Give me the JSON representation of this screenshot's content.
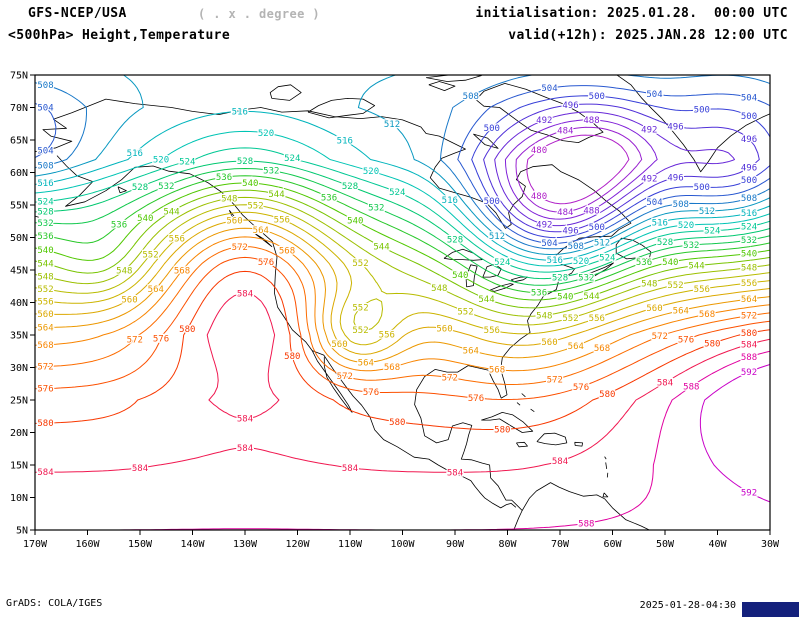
{
  "header": {
    "model": "GFS-NCEP/USA",
    "resolution_note": "( . x . degree )",
    "product": "<500hPa> Height,Temperature",
    "init_line": "initialisation: 2025.01.28.  00:00 UTC",
    "valid_line": "valid(+12h): 2025.JAN.28 12:00 UTC"
  },
  "footer": {
    "credit": "GrADS: COLA/IGES",
    "generated": "2025-01-28-04:30"
  },
  "map": {
    "lat_ticks": [
      "75N",
      "70N",
      "65N",
      "60N",
      "55N",
      "50N",
      "45N",
      "40N",
      "35N",
      "30N",
      "25N",
      "20N",
      "15N",
      "10N",
      "5N"
    ],
    "lon_ticks": [
      "170W",
      "160W",
      "150W",
      "140W",
      "130W",
      "120W",
      "110W",
      "100W",
      "90W",
      "80W",
      "70W",
      "60W",
      "50W",
      "40W",
      "30W"
    ],
    "lat_range_deg": [
      5,
      75
    ],
    "lon_range_deg": [
      -170,
      -30
    ]
  },
  "colors": {
    "background": "#ffffff",
    "frame": "#000000",
    "coastline": "#000000",
    "note_gray": "#b4b4b4",
    "logo_box": "#14217c"
  },
  "chart_data": {
    "type": "heatmap",
    "subtype": "contour-map",
    "variable": "500 hPa geopotential height",
    "units": "dam",
    "contour_interval": 4,
    "levels": [
      480,
      484,
      488,
      492,
      496,
      500,
      504,
      508,
      512,
      516,
      520,
      524,
      528,
      532,
      536,
      540,
      544,
      548,
      552,
      556,
      560,
      564,
      568,
      572,
      576,
      580,
      584,
      588,
      592
    ],
    "level_colors": [
      "#b020c8",
      "#9820d0",
      "#8020d8",
      "#6828d8",
      "#5030d8",
      "#3840d8",
      "#2858d0",
      "#1878c8",
      "#0898c0",
      "#00b4bc",
      "#00c4b4",
      "#00c894",
      "#00c870",
      "#10c84c",
      "#28c828",
      "#50c800",
      "#78c400",
      "#9cc000",
      "#b8bc00",
      "#ccb400",
      "#dca800",
      "#ec9800",
      "#f88400",
      "#fc6c00",
      "#fc5000",
      "#f83800",
      "#f01850",
      "#e000a0",
      "#c800c8"
    ]
  }
}
